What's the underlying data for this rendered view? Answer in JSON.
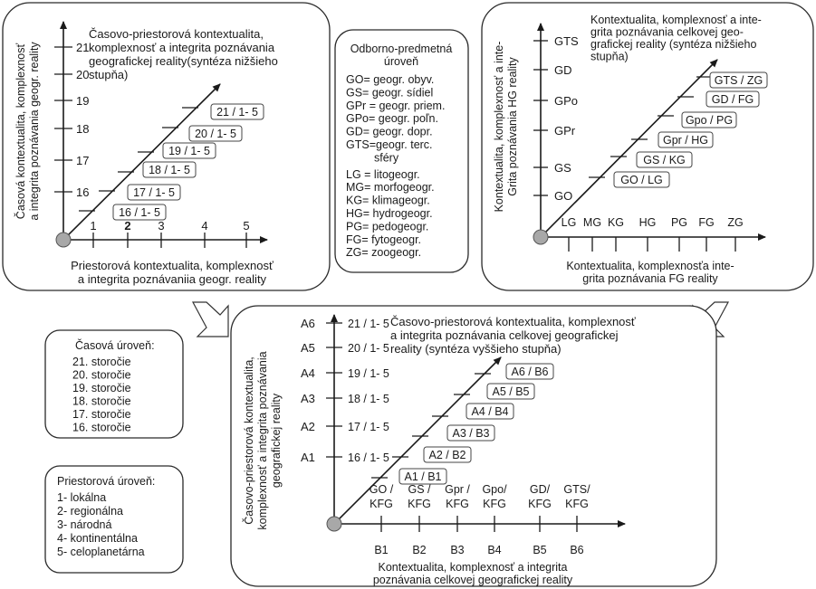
{
  "panel_tl": {
    "title": [
      "Časovo-priestorová kontextualita,",
      "komplexnosť a integrita poznávania",
      "geografickej reality(syntéza nižšieho",
      "stupňa)"
    ],
    "yaxis": [
      "Časová kontextualita, komplexnosť",
      "a integrita poznávania geogr. reality"
    ],
    "xaxis": [
      "Priestorová kontextualita, komplexnosť",
      "a integrita poznávaniia geogr. reality"
    ],
    "yticks": [
      "16",
      "17",
      "18",
      "19",
      "20",
      "21"
    ],
    "xticks": [
      "1",
      "2",
      "3",
      "4",
      "5"
    ],
    "labels": [
      "16 / 1- 5",
      "17 / 1- 5",
      "18 / 1- 5",
      "19 / 1- 5",
      "20 / 1- 5",
      "21 / 1- 5"
    ]
  },
  "panel_center": {
    "heading": [
      "Odborno-predmetná",
      "úroveň"
    ],
    "items": [
      "GO= geogr. obyv.",
      "GS= geogr. sídiel",
      "GPr = geogr. priem.",
      "GPo= geogr. poľn.",
      "GD= geogr. dopr.",
      "GTS=geogr. terc.",
      "sféry",
      "LG = litogeogr.",
      "MG= morfogeogr.",
      "KG= klimageogr.",
      "HG= hydrogeogr.",
      "PG= pedogeogr.",
      "FG= fytogeogr.",
      "ZG= zoogeogr."
    ]
  },
  "panel_tr": {
    "title": [
      "Kontextualita, komplexnosť a inte-",
      "grita poznávania celkovej geo-",
      "grafickej reality (syntéza nižšieho",
      "stupňa)"
    ],
    "yaxis": [
      "Kontextualita, komplexnosť a inte-",
      "Grita poznávania HG reality"
    ],
    "xaxis": [
      "Kontextualita, komplexnosťa inte-",
      "grita poznávania FG reality"
    ],
    "yticks": [
      "GO",
      "GS",
      "GPr",
      "GPo",
      "GD",
      "GTS"
    ],
    "xticks": [
      "LG",
      "MG",
      "KG",
      "HG",
      "PG",
      "FG",
      "ZG"
    ],
    "labels": [
      "GO / LG",
      "GS / KG",
      "Gpr / HG",
      "Gpo / PG",
      "GD / FG",
      "GTS / ZG"
    ]
  },
  "panel_time": {
    "heading": "Časová úroveň:",
    "items": [
      "21. storočie",
      "20. storočie",
      "19. storočie",
      "18. storočie",
      "17. storočie",
      "16. storočie"
    ]
  },
  "panel_space": {
    "heading": "Priestorová úroveň:",
    "items": [
      "1- lokálna",
      "2- regionálna",
      "3- národná",
      "4- kontinentálna",
      "5- celoplanetárna"
    ]
  },
  "panel_bottom": {
    "title": [
      "Časovo-priestorová kontextualita, komplexnosť",
      "a integrita poznávania celkovej geografickej",
      "reality (syntéza vyššieho stupňa)"
    ],
    "yaxis": [
      "Časovo-priestorová kontextualita,",
      "komplexnosť a integrita poznávania",
      "geografickej reality"
    ],
    "xaxis": [
      "Kontextualita, komplexnosť a integrita",
      "poznávania celkovej geografickej reality"
    ],
    "ycodes": [
      "A1",
      "A2",
      "A3",
      "A4",
      "A5",
      "A6"
    ],
    "yticks": [
      "16 / 1- 5",
      "17 / 1- 5",
      "18 / 1- 5",
      "19 / 1- 5",
      "20 / 1- 5",
      "21 / 1- 5"
    ],
    "xtop": [
      "GO /",
      "GS /",
      "Gpr /",
      "Gpo/",
      "GD/",
      "GTS/"
    ],
    "xbottom": [
      "KFG",
      "KFG",
      "KFG",
      "KFG",
      "KFG",
      "KFG"
    ],
    "xcodes": [
      "B1",
      "B2",
      "B3",
      "B4",
      "B5",
      "B6"
    ],
    "labels": [
      "A1 / B1",
      "A2 / B2",
      "A3 / B3",
      "A4 / B4",
      "A5 / B5",
      "A6 / B6"
    ]
  }
}
